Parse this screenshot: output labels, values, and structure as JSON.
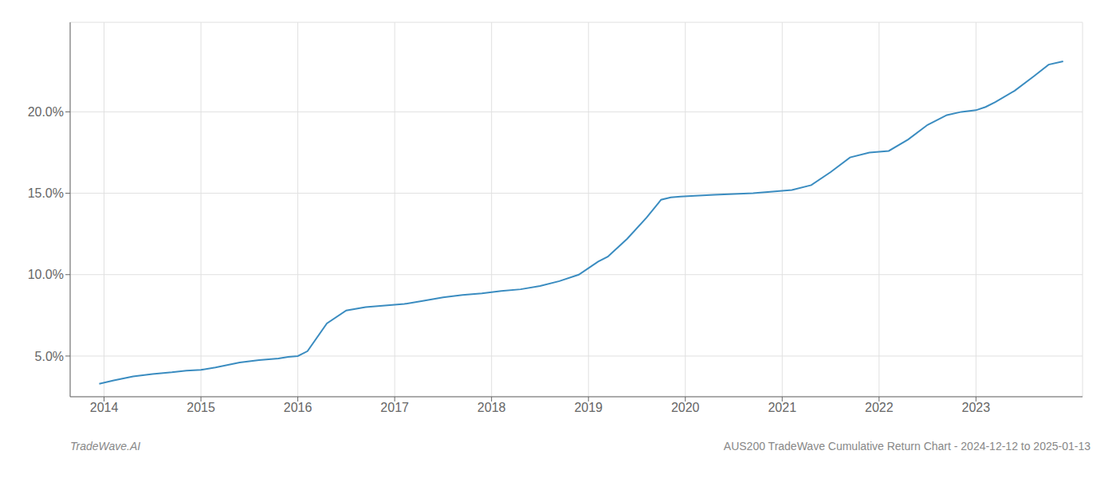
{
  "chart_data": {
    "type": "line",
    "x": [
      2013.95,
      2014.1,
      2014.3,
      2014.5,
      2014.7,
      2014.85,
      2015.0,
      2015.15,
      2015.4,
      2015.6,
      2015.8,
      2015.9,
      2016.0,
      2016.1,
      2016.3,
      2016.5,
      2016.7,
      2016.9,
      2017.1,
      2017.3,
      2017.5,
      2017.7,
      2017.9,
      2018.1,
      2018.3,
      2018.5,
      2018.7,
      2018.9,
      2019.0,
      2019.1,
      2019.2,
      2019.4,
      2019.6,
      2019.75,
      2019.85,
      2019.95,
      2020.1,
      2020.3,
      2020.5,
      2020.7,
      2020.9,
      2021.1,
      2021.3,
      2021.5,
      2021.7,
      2021.9,
      2022.1,
      2022.3,
      2022.5,
      2022.7,
      2022.85,
      2023.0,
      2023.1,
      2023.2,
      2023.4,
      2023.6,
      2023.75,
      2023.9
    ],
    "values": [
      3.3,
      3.5,
      3.75,
      3.9,
      4.0,
      4.1,
      4.15,
      4.3,
      4.6,
      4.75,
      4.85,
      4.95,
      5.0,
      5.3,
      7.0,
      7.8,
      8.0,
      8.1,
      8.2,
      8.4,
      8.6,
      8.75,
      8.85,
      9.0,
      9.1,
      9.3,
      9.6,
      10.0,
      10.4,
      10.8,
      11.1,
      12.2,
      13.5,
      14.6,
      14.75,
      14.8,
      14.85,
      14.9,
      14.95,
      15.0,
      15.1,
      15.2,
      15.5,
      16.3,
      17.2,
      17.5,
      17.6,
      18.3,
      19.2,
      19.8,
      20.0,
      20.1,
      20.3,
      20.6,
      21.3,
      22.2,
      22.9,
      23.1
    ],
    "color": "#3a8cc0",
    "xlim": [
      2013.65,
      2024.1
    ],
    "xticks": [
      2014,
      2015,
      2016,
      2017,
      2018,
      2019,
      2020,
      2021,
      2022,
      2023
    ],
    "ylim": [
      2.5,
      25.5
    ],
    "yticks": [
      {
        "value": 5.0,
        "label": "5.0%"
      },
      {
        "value": 10.0,
        "label": "10.0%"
      },
      {
        "value": 15.0,
        "label": "15.0%"
      },
      {
        "value": 20.0,
        "label": "20.0%"
      }
    ],
    "grid": true,
    "annotations": [
      "TradeWave.AI",
      "AUS200 TradeWave Cumulative Return Chart - 2024-12-12 to 2025-01-13"
    ]
  }
}
